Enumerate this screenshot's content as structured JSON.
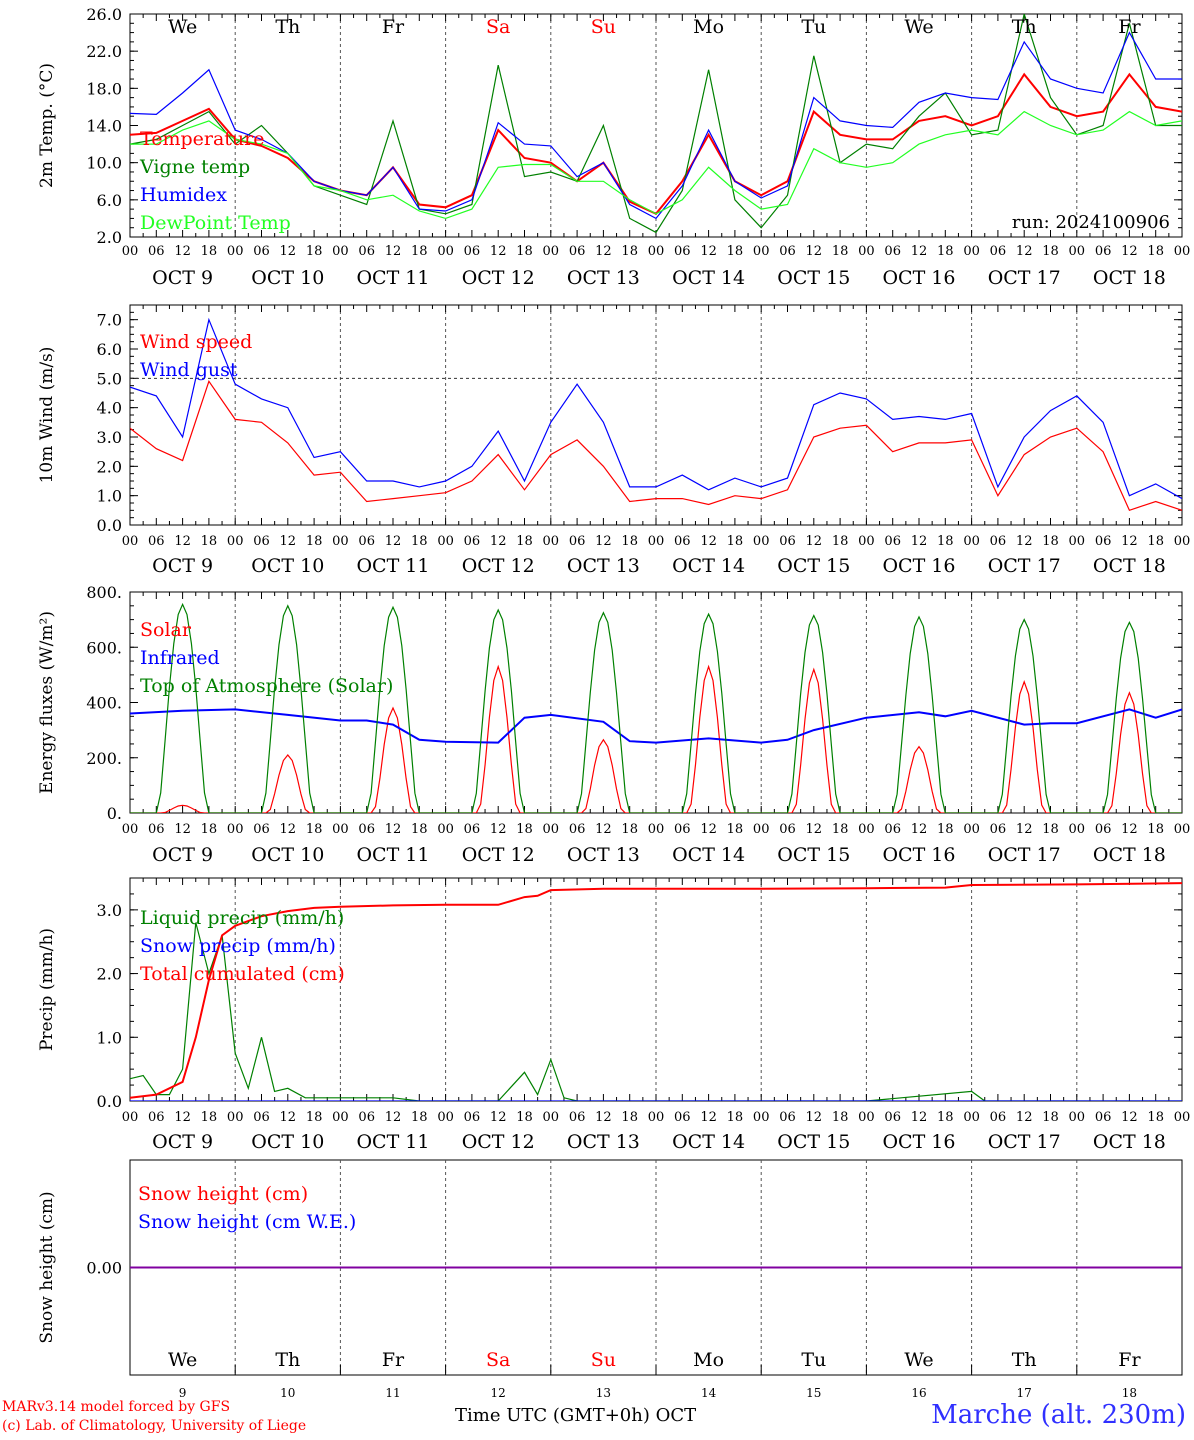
{
  "days": [
    "We",
    "Th",
    "Fr",
    "Sa",
    "Su",
    "Mo",
    "Tu",
    "We",
    "Th",
    "Fr"
  ],
  "day_colors": [
    "#000000",
    "#000000",
    "#000000",
    "#ff0000",
    "#ff0000",
    "#000000",
    "#000000",
    "#000000",
    "#000000",
    "#000000"
  ],
  "dates": [
    "OCT  9",
    "OCT 10",
    "OCT 11",
    "OCT 12",
    "OCT 13",
    "OCT 14",
    "OCT 15",
    "OCT 16",
    "OCT 17",
    "OCT 18"
  ],
  "day_numbers": [
    "9",
    "10",
    "11",
    "12",
    "13",
    "14",
    "15",
    "16",
    "17",
    "18"
  ],
  "hour_ticks": [
    "00",
    "06",
    "12",
    "18"
  ],
  "last_hour_tick": "00",
  "footer": {
    "line1": "MARv3.14 model forced by GFS",
    "line2": "(c) Lab. of Climatology, University of Liege",
    "xlabel": "Time UTC (GMT+0h) OCT",
    "station": "Marche (alt. 230m)"
  },
  "chart_data": [
    {
      "type": "line",
      "ylabel": "2m Temp. (°C)",
      "ylim": [
        2.0,
        26.0
      ],
      "yticks": [
        "2.0",
        "6.0",
        "10.0",
        "14.0",
        "18.0",
        "22.0",
        "26.0"
      ],
      "annotation": "run: 2024100906",
      "x_unit": "hours since Oct 9 00 UTC",
      "series": [
        {
          "name": "Temperature",
          "color": "#ff0000",
          "x": [
            0,
            6,
            12,
            18,
            24,
            30,
            36,
            42,
            48,
            54,
            60,
            66,
            72,
            78,
            84,
            90,
            96,
            102,
            108,
            114,
            120,
            126,
            132,
            138,
            144,
            150,
            156,
            162,
            168,
            174,
            180,
            186,
            192,
            198,
            204,
            210,
            216,
            222,
            228,
            234,
            240
          ],
          "values": [
            13.0,
            13.2,
            14.5,
            15.8,
            12.5,
            11.8,
            10.5,
            8.0,
            7.0,
            6.5,
            9.5,
            5.5,
            5.2,
            6.5,
            13.5,
            10.5,
            10.0,
            8.0,
            10.0,
            5.8,
            4.5,
            8.0,
            13.0,
            8.0,
            6.5,
            8.0,
            15.5,
            13.0,
            12.5,
            12.5,
            14.5,
            15.0,
            14.0,
            15.0,
            19.5,
            16.0,
            15.0,
            15.5,
            19.5,
            16.0,
            15.5
          ]
        },
        {
          "name": "Vigne temp",
          "color": "#008000",
          "x": [
            0,
            6,
            12,
            18,
            24,
            30,
            36,
            42,
            48,
            54,
            60,
            66,
            72,
            78,
            84,
            90,
            96,
            102,
            108,
            114,
            120,
            126,
            132,
            138,
            144,
            150,
            156,
            162,
            168,
            174,
            180,
            186,
            192,
            198,
            204,
            210,
            216,
            222,
            228,
            234,
            240
          ],
          "values": [
            12.0,
            12.5,
            14.0,
            15.5,
            12.0,
            14.0,
            11.0,
            7.5,
            6.5,
            5.5,
            14.5,
            5.0,
            4.5,
            5.5,
            20.5,
            8.5,
            9.0,
            8.0,
            14.0,
            4.0,
            2.5,
            7.0,
            20.0,
            6.0,
            3.0,
            6.5,
            21.5,
            10.0,
            12.0,
            11.5,
            15.0,
            17.5,
            13.0,
            13.5,
            26.0,
            17.0,
            13.0,
            14.0,
            25.0,
            14.0,
            14.0
          ]
        },
        {
          "name": "Humidex",
          "color": "#0000ff",
          "x": [
            0,
            6,
            12,
            18,
            24,
            30,
            36,
            42,
            48,
            54,
            60,
            66,
            72,
            78,
            84,
            90,
            96,
            102,
            108,
            114,
            120,
            126,
            132,
            138,
            144,
            150,
            156,
            162,
            168,
            174,
            180,
            186,
            192,
            198,
            204,
            210,
            216,
            222,
            228,
            234,
            240
          ],
          "values": [
            15.3,
            15.2,
            17.5,
            20.0,
            13.5,
            12.5,
            11.0,
            8.0,
            7.0,
            6.5,
            9.5,
            5.0,
            4.8,
            6.0,
            14.3,
            12.0,
            11.8,
            8.5,
            10.0,
            5.5,
            4.0,
            7.5,
            13.5,
            8.0,
            6.2,
            7.5,
            17.0,
            14.5,
            14.0,
            13.8,
            16.5,
            17.5,
            17.0,
            16.8,
            23.0,
            19.0,
            18.0,
            17.5,
            24.0,
            19.0,
            19.0
          ]
        },
        {
          "name": "DewPoint Temp",
          "color": "#22ff22",
          "x": [
            0,
            6,
            12,
            18,
            24,
            30,
            36,
            42,
            48,
            54,
            60,
            66,
            72,
            78,
            84,
            90,
            96,
            102,
            108,
            114,
            120,
            126,
            132,
            138,
            144,
            150,
            156,
            162,
            168,
            174,
            180,
            186,
            192,
            198,
            204,
            210,
            216,
            222,
            228,
            234,
            240
          ],
          "values": [
            12.0,
            12.0,
            13.5,
            14.5,
            12.5,
            12.0,
            11.0,
            7.5,
            7.0,
            6.0,
            6.5,
            4.8,
            4.0,
            5.0,
            9.5,
            9.8,
            9.8,
            8.0,
            8.0,
            6.0,
            4.5,
            6.0,
            9.5,
            7.0,
            5.0,
            5.5,
            11.5,
            10.0,
            9.5,
            10.0,
            12.0,
            13.0,
            13.5,
            13.0,
            15.5,
            14.0,
            13.0,
            13.5,
            15.5,
            14.0,
            14.5
          ]
        }
      ]
    },
    {
      "type": "line",
      "ylabel": "10m Wind (m/s)",
      "ylim": [
        0.0,
        7.5
      ],
      "yticks": [
        "0.0",
        "1.0",
        "2.0",
        "3.0",
        "4.0",
        "5.0",
        "6.0",
        "7.0"
      ],
      "reference_line": 5.0,
      "x_unit": "hours since Oct 9 00 UTC",
      "series": [
        {
          "name": "Wind speed",
          "color": "#ff0000",
          "x": [
            0,
            6,
            12,
            18,
            24,
            30,
            36,
            42,
            48,
            54,
            60,
            66,
            72,
            78,
            84,
            90,
            96,
            102,
            108,
            114,
            120,
            126,
            132,
            138,
            144,
            150,
            156,
            162,
            168,
            174,
            180,
            186,
            192,
            198,
            204,
            210,
            216,
            222,
            228,
            234,
            240
          ],
          "values": [
            3.3,
            2.6,
            2.2,
            4.9,
            3.6,
            3.5,
            2.8,
            1.7,
            1.8,
            0.8,
            0.9,
            1.0,
            1.1,
            1.5,
            2.4,
            1.2,
            2.4,
            2.9,
            2.0,
            0.8,
            0.9,
            0.9,
            0.7,
            1.0,
            0.9,
            1.2,
            3.0,
            3.3,
            3.4,
            2.5,
            2.8,
            2.8,
            2.9,
            1.0,
            2.4,
            3.0,
            3.3,
            2.5,
            0.5,
            0.8,
            0.5
          ]
        },
        {
          "name": "Wind gust",
          "color": "#0000ff",
          "x": [
            0,
            6,
            12,
            18,
            24,
            30,
            36,
            42,
            48,
            54,
            60,
            66,
            72,
            78,
            84,
            90,
            96,
            102,
            108,
            114,
            120,
            126,
            132,
            138,
            144,
            150,
            156,
            162,
            168,
            174,
            180,
            186,
            192,
            198,
            204,
            210,
            216,
            222,
            228,
            234,
            240
          ],
          "values": [
            4.7,
            4.4,
            3.0,
            7.0,
            4.8,
            4.3,
            4.0,
            2.3,
            2.5,
            1.5,
            1.5,
            1.3,
            1.5,
            2.0,
            3.2,
            1.5,
            3.5,
            4.8,
            3.5,
            1.3,
            1.3,
            1.7,
            1.2,
            1.6,
            1.3,
            1.6,
            4.1,
            4.5,
            4.3,
            3.6,
            3.7,
            3.6,
            3.8,
            1.3,
            3.0,
            3.9,
            4.4,
            3.5,
            1.0,
            1.4,
            0.9
          ]
        }
      ]
    },
    {
      "type": "line",
      "ylabel": "Energy fluxes (W/m²)",
      "ylim": [
        0,
        800
      ],
      "yticks": [
        "0.",
        "200.",
        "400.",
        "600.",
        "800."
      ],
      "x_unit": "hours since Oct 9 00 UTC",
      "series": [
        {
          "name": "Solar",
          "color": "#ff0000",
          "day_peaks": [
            28,
            210,
            380,
            530,
            265,
            530,
            520,
            240,
            475,
            435
          ]
        },
        {
          "name": "Infrared",
          "color": "#0000ff",
          "x": [
            0,
            12,
            24,
            36,
            48,
            54,
            60,
            66,
            72,
            84,
            90,
            96,
            108,
            114,
            120,
            132,
            144,
            150,
            156,
            168,
            180,
            186,
            192,
            204,
            210,
            216,
            228,
            234,
            240
          ],
          "values": [
            360,
            370,
            375,
            355,
            335,
            335,
            320,
            265,
            258,
            255,
            345,
            355,
            330,
            260,
            255,
            270,
            255,
            265,
            300,
            345,
            365,
            350,
            370,
            320,
            325,
            325,
            375,
            345,
            375
          ]
        },
        {
          "name": "Top of Atmosphere (Solar)",
          "color": "#008000",
          "day_peaks": [
            755,
            750,
            745,
            735,
            725,
            720,
            715,
            710,
            700,
            690
          ]
        }
      ]
    },
    {
      "type": "line",
      "ylabel": "Precip (mm/h)",
      "ylim": [
        0.0,
        3.5
      ],
      "yticks": [
        "0.0",
        "1.0",
        "2.0",
        "3.0"
      ],
      "x_unit": "hours since Oct 9 00 UTC",
      "series": [
        {
          "name": "Liquid precip (mm/h)",
          "color": "#008000",
          "x": [
            0,
            3,
            6,
            9,
            12,
            15,
            18,
            21,
            24,
            27,
            30,
            33,
            36,
            40,
            48,
            60,
            66,
            72,
            84,
            90,
            93,
            96,
            99,
            102,
            108,
            144,
            168,
            192,
            195,
            198,
            240
          ],
          "values": [
            0.35,
            0.4,
            0.1,
            0.1,
            0.5,
            2.8,
            2.0,
            2.6,
            0.75,
            0.2,
            1.0,
            0.15,
            0.2,
            0.05,
            0.05,
            0.05,
            0.0,
            0.0,
            0.0,
            0.45,
            0.1,
            0.65,
            0.05,
            0.0,
            0.0,
            0.0,
            0.0,
            0.15,
            0.0,
            0.0,
            0.0
          ]
        },
        {
          "name": "Snow precip (mm/h)",
          "color": "#0000ff",
          "x": [
            0,
            240
          ],
          "values": [
            0.0,
            0.0
          ]
        },
        {
          "name": "Total cumulated (cm)",
          "color": "#ff0000",
          "x": [
            0,
            6,
            12,
            15,
            18,
            21,
            24,
            30,
            36,
            42,
            48,
            60,
            72,
            84,
            90,
            93,
            96,
            108,
            144,
            168,
            186,
            192,
            216,
            240
          ],
          "values": [
            0.05,
            0.1,
            0.3,
            1.0,
            1.9,
            2.6,
            2.75,
            2.9,
            2.98,
            3.03,
            3.05,
            3.07,
            3.08,
            3.08,
            3.2,
            3.22,
            3.31,
            3.33,
            3.33,
            3.34,
            3.35,
            3.39,
            3.4,
            3.42
          ]
        }
      ]
    },
    {
      "type": "line",
      "ylabel": "Snow height (cm)",
      "ylim": [
        -1.0,
        1.0
      ],
      "yticks": [
        "0.00"
      ],
      "series": [
        {
          "name": "Snow height (cm)",
          "color": "#ff0000",
          "x": [
            0,
            240
          ],
          "values": [
            0.0,
            0.0
          ]
        },
        {
          "name": "Snow height (cm W.E.)",
          "color": "#0000ff",
          "x": [
            0,
            240
          ],
          "values": [
            0.0,
            0.0
          ]
        }
      ]
    }
  ]
}
